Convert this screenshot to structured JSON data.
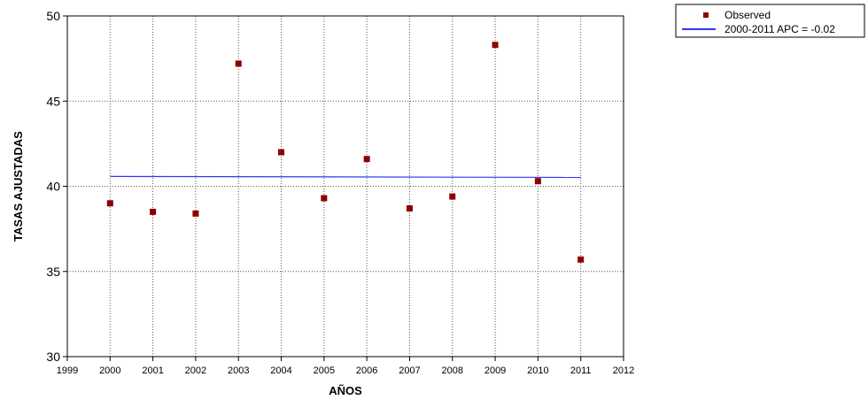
{
  "chart_data": {
    "type": "scatter",
    "xlabel": "AÑOS",
    "ylabel": "TASAS AJUSTADAS",
    "xlim": [
      1999,
      2012
    ],
    "ylim": [
      30,
      50
    ],
    "x_ticks": [
      "1999",
      "2000",
      "2001",
      "2002",
      "2003",
      "2004",
      "2005",
      "2006",
      "2007",
      "2008",
      "2009",
      "2010",
      "2011",
      "2012"
    ],
    "y_ticks": [
      "30",
      "35",
      "40",
      "45",
      "50"
    ],
    "grid": true,
    "legend_position": "top-right, outside plot",
    "series": [
      {
        "name": "Observed",
        "kind": "scatter",
        "marker": "square",
        "color": "#8b0000",
        "points": [
          {
            "x": 2000,
            "y": 39.0
          },
          {
            "x": 2001,
            "y": 38.5
          },
          {
            "x": 2002,
            "y": 38.4
          },
          {
            "x": 2003,
            "y": 47.2
          },
          {
            "x": 2004,
            "y": 42.0
          },
          {
            "x": 2005,
            "y": 39.3
          },
          {
            "x": 2006,
            "y": 41.6
          },
          {
            "x": 2007,
            "y": 38.7
          },
          {
            "x": 2008,
            "y": 39.4
          },
          {
            "x": 2009,
            "y": 48.3
          },
          {
            "x": 2010,
            "y": 40.3
          },
          {
            "x": 2011,
            "y": 35.7
          }
        ]
      },
      {
        "name": "2000-2011 APC  = -0.02",
        "kind": "line",
        "color": "#3333ff",
        "points": [
          {
            "x": 2000,
            "y": 40.58
          },
          {
            "x": 2011,
            "y": 40.52
          }
        ]
      }
    ]
  }
}
